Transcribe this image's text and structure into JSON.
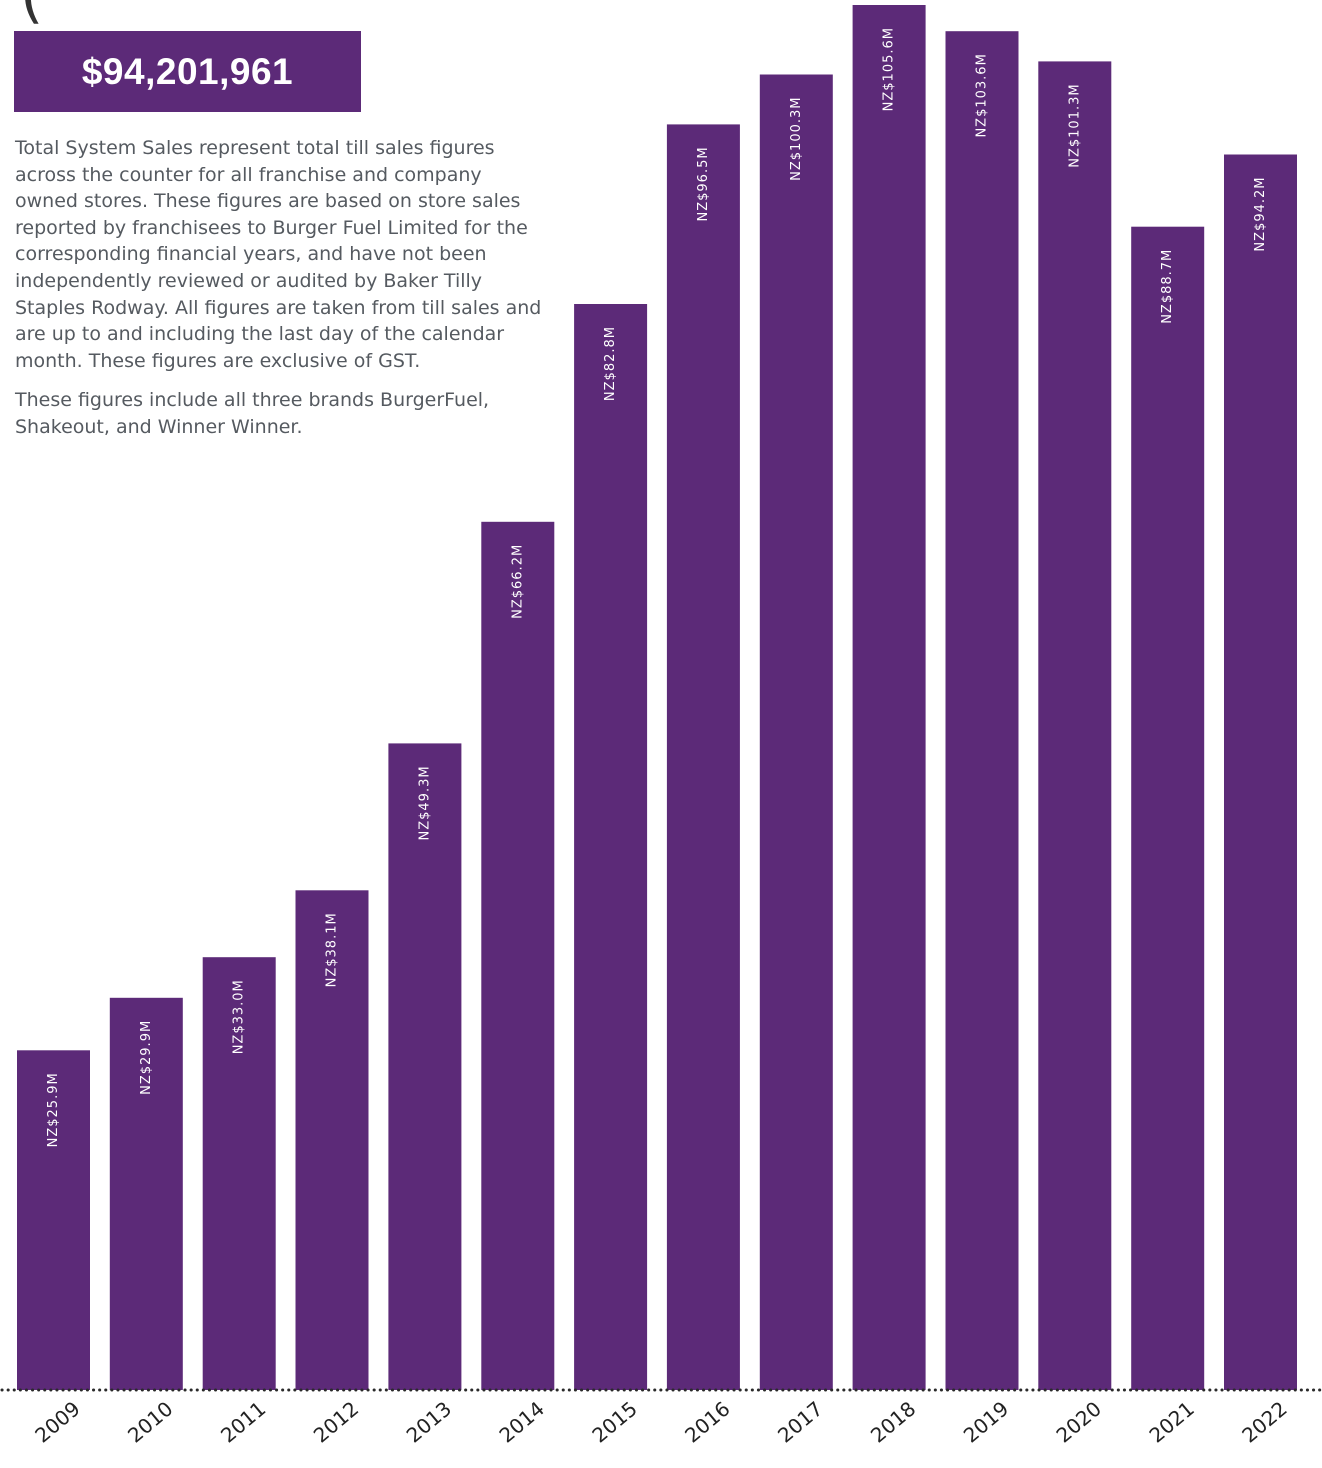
{
  "header": {
    "title_fragment": "(",
    "total_value": "$94,201,961",
    "paragraphs": [
      "Total System Sales represent total till sales figures across the counter for all franchise and company owned stores. These figures are based on store sales reported by franchisees to Burger Fuel Limited for the corresponding financial years, and have not been independently reviewed or audited by Baker Tilly Staples Rodway. All figures are taken from till sales and are up to and including the last day of the calendar month. These figures are exclusive of GST.",
      "These figures include all three brands BurgerFuel, Shakeout, and Winner Winner."
    ]
  },
  "colors": {
    "bar": "#5c2a78",
    "axis": "#2a2a2a",
    "text": "#555a60"
  },
  "chart_data": {
    "type": "bar",
    "categories": [
      "2009",
      "2010",
      "2011",
      "2012",
      "2013",
      "2014",
      "2015",
      "2016",
      "2017",
      "2018",
      "2019",
      "2020",
      "2021",
      "2022"
    ],
    "values": [
      25.9,
      29.9,
      33.0,
      38.1,
      49.3,
      66.2,
      82.8,
      96.5,
      100.3,
      105.6,
      103.6,
      101.3,
      88.7,
      94.2
    ],
    "data_labels": [
      "NZ$25.9M",
      "NZ$29.9M",
      "NZ$33.0M",
      "NZ$38.1M",
      "NZ$49.3M",
      "NZ$66.2M",
      "NZ$82.8M",
      "NZ$96.5M",
      "NZ$100.3M",
      "NZ$105.6M",
      "NZ$103.6M",
      "NZ$101.3M",
      "NZ$88.7M",
      "NZ$94.2M"
    ],
    "ylim": [
      0,
      105.6
    ],
    "grid": false,
    "legend": "none",
    "title": "",
    "xlabel": "",
    "ylabel": ""
  }
}
